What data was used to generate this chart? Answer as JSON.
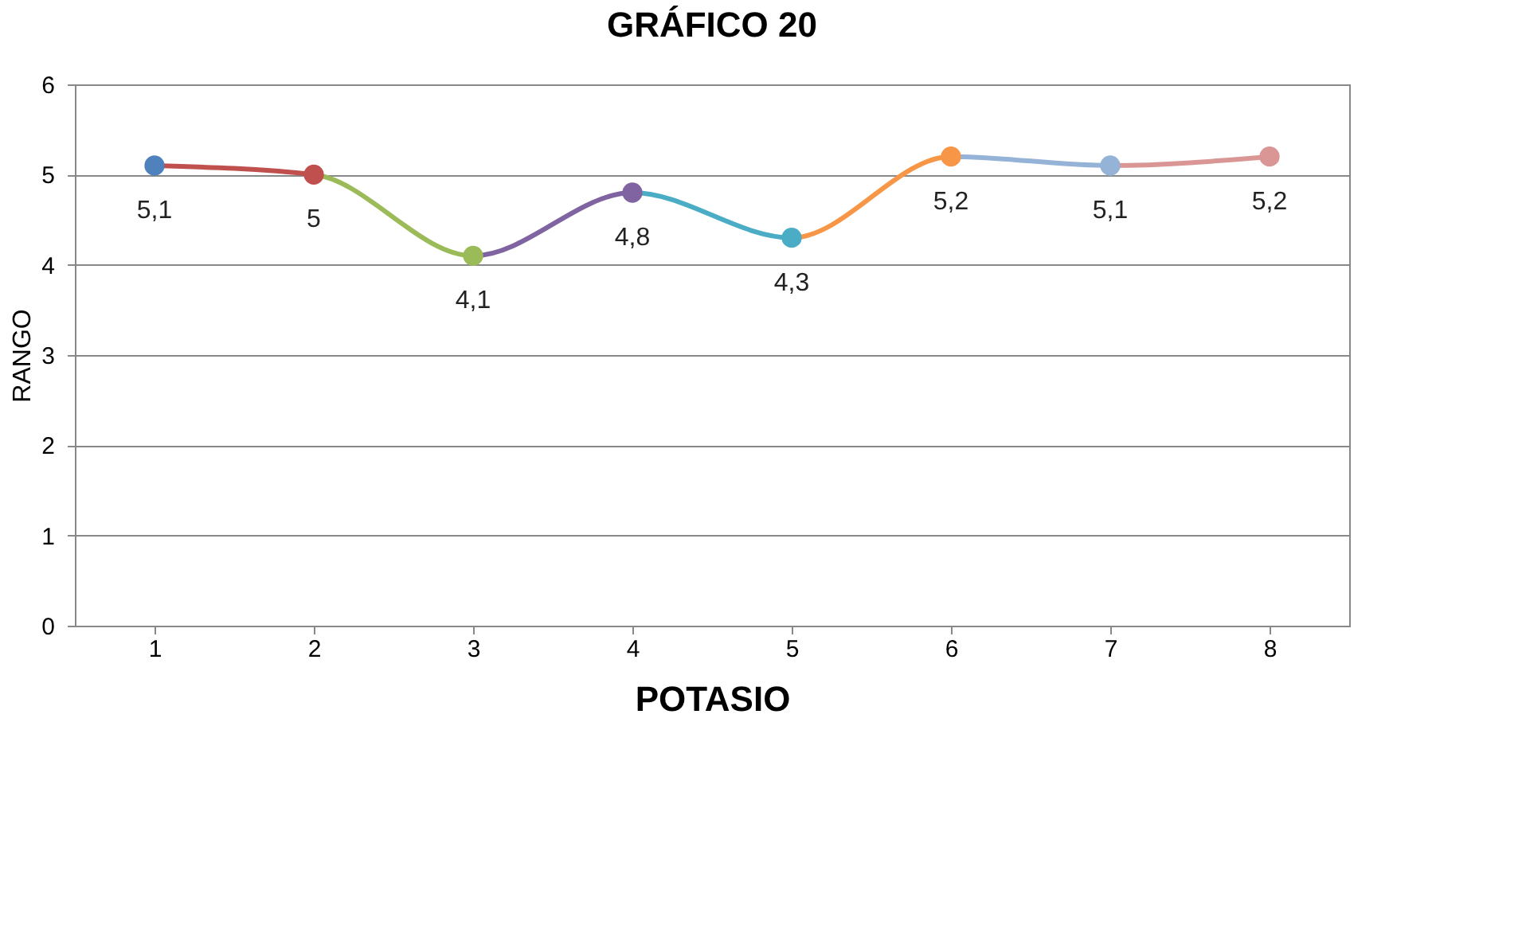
{
  "chart_data": {
    "type": "line",
    "title": "GRÁFICO 20",
    "xlabel": "POTASIO",
    "ylabel": "RANGO",
    "categories": [
      "1",
      "2",
      "3",
      "4",
      "5",
      "6",
      "7",
      "8"
    ],
    "values": [
      5.1,
      5,
      4.1,
      4.8,
      4.3,
      5.2,
      5.1,
      5.2
    ],
    "colors": [
      "#4f81bd",
      "#c0504d",
      "#9bbb59",
      "#8064a2",
      "#4bacc6",
      "#f79646",
      "#95b3d7",
      "#d99694"
    ],
    "value_labels": [
      "5,1",
      "5",
      "4,1",
      "4,8",
      "4,3",
      "5,2",
      "5,1",
      "5,2"
    ],
    "ylim": [
      0,
      6
    ],
    "yticks": [
      0,
      1,
      2,
      3,
      4,
      5,
      6
    ],
    "grid": "y",
    "marker": "circle",
    "line_style": "solid"
  }
}
